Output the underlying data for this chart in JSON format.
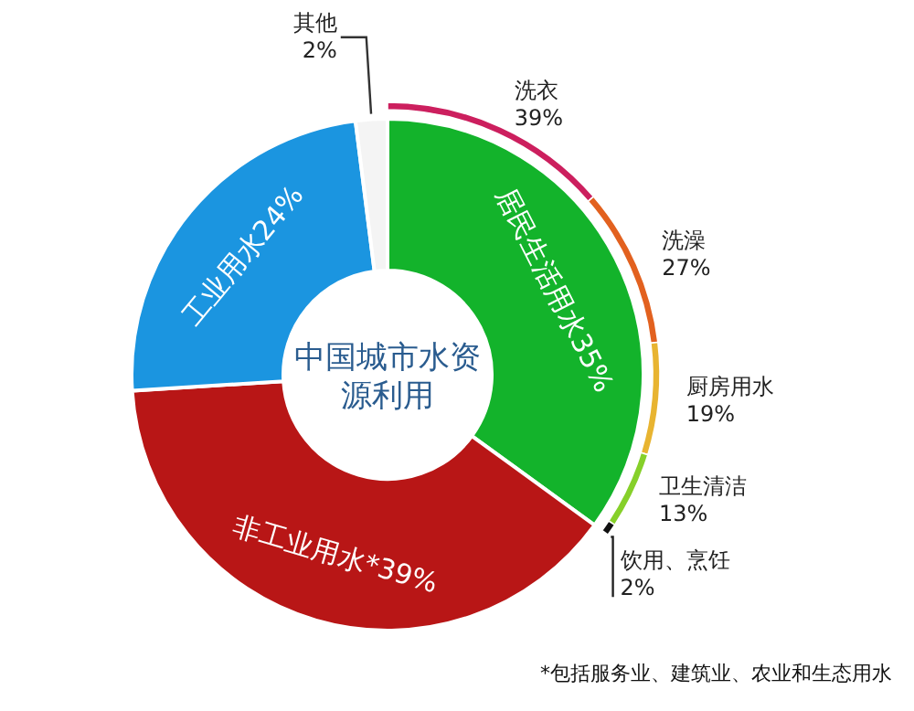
{
  "chart_data": [
    {
      "type": "donut",
      "title": "中国城市水资源利用",
      "categories": [
        "居民生活用水",
        "非工业用水*",
        "工业用水",
        "其他"
      ],
      "values": [
        35,
        39,
        24,
        2
      ],
      "colors": [
        "#13b32b",
        "#b81616",
        "#1b95e0",
        "#f4f4f4"
      ],
      "value_labels": [
        "35%",
        "39%",
        "24%",
        "2%"
      ],
      "annotations": [
        "*包括服务业、建筑业、农业和生态用水"
      ]
    },
    {
      "type": "other",
      "categories": [
        "洗衣",
        "洗澡",
        "厨房用水",
        "卫生清洁",
        "饮用、烹饪"
      ],
      "values": [
        39,
        27,
        19,
        13,
        2
      ],
      "colors": [
        "#cc1f5e",
        "#e2611f",
        "#e8b431",
        "#86d02a",
        "#111111"
      ],
      "value_labels": [
        "39%",
        "27%",
        "19%",
        "13%",
        "2%"
      ]
    }
  ]
}
